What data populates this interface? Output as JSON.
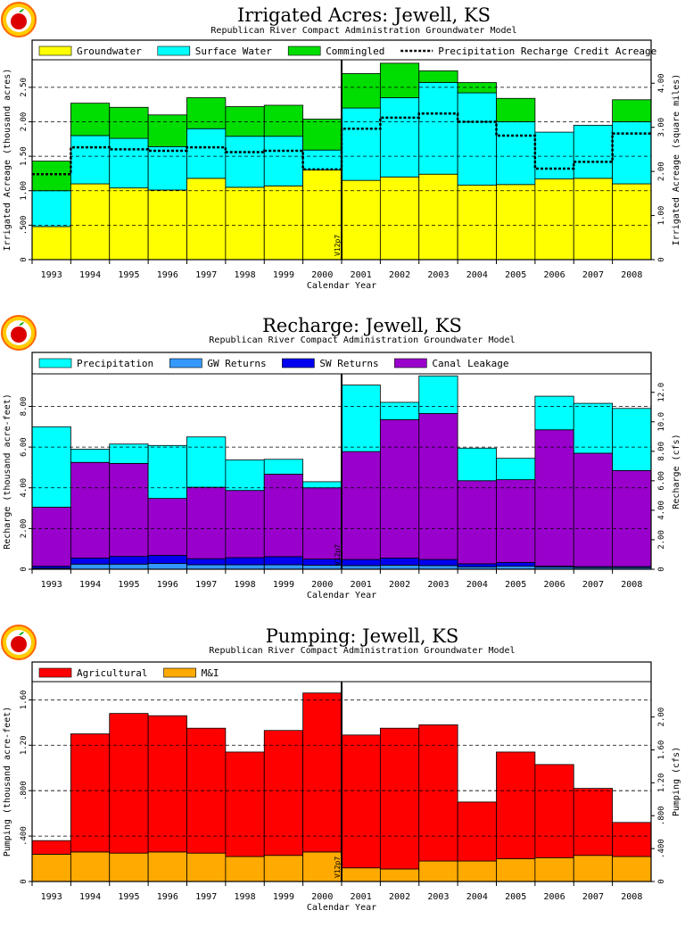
{
  "chart_data": [
    {
      "type": "bar",
      "stacked": true,
      "title": "Irrigated Acres: Jewell, KS",
      "subtitle": "Republican River Compact Administration Groundwater Model",
      "xlabel": "Calendar Year",
      "ylabel": "Irrigated Acreage (thousand acres)",
      "y2label": "Irrigated Acreage (square miles)",
      "ylim": [
        0,
        2.9
      ],
      "y2_scale": 0.64,
      "y2_ticks": [
        {
          "v": 0,
          "t": "0"
        },
        {
          "v": 1.0,
          "t": "1.00"
        },
        {
          "v": 2.0,
          "t": "2.00"
        },
        {
          "v": 3.0,
          "t": "3.00"
        },
        {
          "v": 4.0,
          "t": "4.00"
        }
      ],
      "yticks": [
        {
          "v": 0,
          "t": "0"
        },
        {
          "v": 0.5,
          "t": ".500"
        },
        {
          "v": 1.0,
          "t": "1.00"
        },
        {
          "v": 1.5,
          "t": "1.50"
        },
        {
          "v": 2.0,
          "t": "2.00"
        },
        {
          "v": 2.5,
          "t": "2.50"
        }
      ],
      "grid_lines": [
        0.5,
        1.0,
        1.5,
        2.0,
        2.5
      ],
      "categories": [
        "1993",
        "1994",
        "1995",
        "1996",
        "1997",
        "1998",
        "1999",
        "2000",
        "2001",
        "2002",
        "2003",
        "2004",
        "2005",
        "2006",
        "2007",
        "2008"
      ],
      "series": [
        {
          "name": "Groundwater",
          "color": "#ffff00",
          "values": [
            0.48,
            1.1,
            1.04,
            1.01,
            1.18,
            1.05,
            1.07,
            1.3,
            1.15,
            1.2,
            1.24,
            1.08,
            1.09,
            1.17,
            1.18,
            1.1
          ]
        },
        {
          "name": "Surface Water",
          "color": "#00ffff",
          "values": [
            0.52,
            0.7,
            0.72,
            0.63,
            0.72,
            0.74,
            0.72,
            0.29,
            1.05,
            1.15,
            1.33,
            1.34,
            0.91,
            0.68,
            0.77,
            0.9
          ]
        },
        {
          "name": "Commingled",
          "color": "#00dd00",
          "values": [
            0.43,
            0.47,
            0.45,
            0.46,
            0.45,
            0.43,
            0.45,
            0.45,
            0.5,
            0.5,
            0.17,
            0.15,
            0.34,
            0,
            0,
            0.32
          ]
        }
      ],
      "line_series": {
        "name": "Precipitation Recharge Credit Acreage",
        "values": [
          1.24,
          1.63,
          1.6,
          1.58,
          1.63,
          1.56,
          1.58,
          1.31,
          1.9,
          2.06,
          2.12,
          2.0,
          1.8,
          1.32,
          1.42,
          1.83
        ]
      },
      "vline_after_index": 7,
      "vline_label": "V12p7",
      "legend_position": "top"
    },
    {
      "type": "bar",
      "stacked": true,
      "title": "Recharge: Jewell, KS",
      "subtitle": "Republican River Compact Administration Groundwater Model",
      "xlabel": "Calendar Year",
      "ylabel": "Recharge (thousand acre-feet)",
      "y2label": "Recharge (cfs)",
      "ylim": [
        0,
        9.6
      ],
      "y2_scale": 0.7243,
      "y2_ticks": [
        {
          "v": 0,
          "t": "0"
        },
        {
          "v": 2.0,
          "t": "2.00"
        },
        {
          "v": 4.0,
          "t": "4.00"
        },
        {
          "v": 6.0,
          "t": "6.00"
        },
        {
          "v": 8.0,
          "t": "8.00"
        },
        {
          "v": 10.0,
          "t": "10.0"
        },
        {
          "v": 12.0,
          "t": "12.0"
        }
      ],
      "yticks": [
        {
          "v": 0,
          "t": "0"
        },
        {
          "v": 2.0,
          "t": "2.00"
        },
        {
          "v": 4.0,
          "t": "4.00"
        },
        {
          "v": 6.0,
          "t": "6.00"
        },
        {
          "v": 8.0,
          "t": "8.00"
        }
      ],
      "grid_lines": [
        2.0,
        4.0,
        6.0,
        8.0
      ],
      "categories": [
        "1993",
        "1994",
        "1995",
        "1996",
        "1997",
        "1998",
        "1999",
        "2000",
        "2001",
        "2002",
        "2003",
        "2004",
        "2005",
        "2006",
        "2007",
        "2008"
      ],
      "series": [
        {
          "name": "GW Returns",
          "color": "#3399ff",
          "values": [
            0.05,
            0.25,
            0.25,
            0.28,
            0.22,
            0.22,
            0.22,
            0.2,
            0.18,
            0.2,
            0.18,
            0.12,
            0.15,
            0.1,
            0.08,
            0.08
          ]
        },
        {
          "name": "SW Returns",
          "color": "#0000ee",
          "values": [
            0.1,
            0.3,
            0.38,
            0.4,
            0.3,
            0.35,
            0.4,
            0.3,
            0.3,
            0.35,
            0.3,
            0.15,
            0.18,
            0.05,
            0.05,
            0.05
          ]
        },
        {
          "name": "Canal Leakage",
          "color": "#9900cc",
          "values": [
            2.9,
            4.7,
            4.57,
            2.8,
            3.51,
            3.3,
            4.05,
            3.5,
            5.3,
            6.8,
            7.17,
            4.08,
            4.07,
            6.7,
            5.57,
            4.72
          ]
        },
        {
          "name": "Precipitation",
          "color": "#00ffff",
          "values": [
            3.95,
            0.65,
            0.95,
            2.6,
            2.47,
            1.5,
            0.73,
            0.3,
            3.27,
            0.85,
            1.85,
            1.6,
            1.05,
            1.65,
            2.45,
            3.05
          ]
        }
      ],
      "legend_order": [
        "Precipitation",
        "GW Returns",
        "SW Returns",
        "Canal Leakage"
      ],
      "vline_after_index": 7,
      "vline_label": "V12p7",
      "legend_position": "top"
    },
    {
      "type": "bar",
      "stacked": true,
      "title": "Pumping: Jewell, KS",
      "subtitle": "Republican River Compact Administration Groundwater Model",
      "xlabel": "Calendar Year",
      "ylabel": "Pumping (thousand acre-feet)",
      "y2label": "Pumping (cfs)",
      "ylim": [
        0,
        1.76
      ],
      "y2_scale": 0.7243,
      "y2_ticks": [
        {
          "v": 0,
          "t": "0"
        },
        {
          "v": 0.4,
          "t": ".400"
        },
        {
          "v": 0.8,
          "t": ".800"
        },
        {
          "v": 1.2,
          "t": "1.20"
        },
        {
          "v": 1.6,
          "t": "1.60"
        },
        {
          "v": 2.0,
          "t": "2.00"
        }
      ],
      "yticks": [
        {
          "v": 0,
          "t": "0"
        },
        {
          "v": 0.4,
          "t": ".400"
        },
        {
          "v": 0.8,
          "t": ".800"
        },
        {
          "v": 1.2,
          "t": "1.20"
        },
        {
          "v": 1.6,
          "t": "1.60"
        }
      ],
      "grid_lines": [
        0.4,
        0.8,
        1.2,
        1.6
      ],
      "categories": [
        "1993",
        "1994",
        "1995",
        "1996",
        "1997",
        "1998",
        "1999",
        "2000",
        "2001",
        "2002",
        "2003",
        "2004",
        "2005",
        "2006",
        "2007",
        "2008"
      ],
      "series": [
        {
          "name": "M&I",
          "color": "#ffaa00",
          "values": [
            0.24,
            0.26,
            0.25,
            0.26,
            0.25,
            0.22,
            0.23,
            0.26,
            0.12,
            0.11,
            0.18,
            0.18,
            0.2,
            0.21,
            0.23,
            0.22
          ]
        },
        {
          "name": "Agricultural",
          "color": "#ff0000",
          "values": [
            0.12,
            1.04,
            1.23,
            1.2,
            1.1,
            0.92,
            1.1,
            1.4,
            1.17,
            1.24,
            1.2,
            0.52,
            0.94,
            0.82,
            0.59,
            0.3
          ]
        }
      ],
      "legend_order": [
        "Agricultural",
        "M&I"
      ],
      "vline_after_index": 7,
      "vline_label": "V12p7",
      "legend_position": "top"
    }
  ]
}
